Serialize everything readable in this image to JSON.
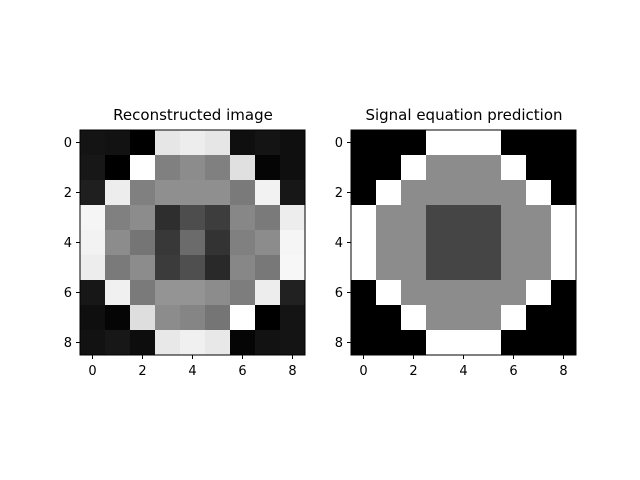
{
  "chart_data": [
    {
      "type": "heatmap",
      "title": "Reconstructed image",
      "colormap": "gray",
      "xticks": [
        0,
        2,
        4,
        6,
        8
      ],
      "yticks": [
        0,
        2,
        4,
        6,
        8
      ],
      "xlim": [
        -0.5,
        8.5
      ],
      "ylim": [
        8.5,
        -0.5
      ],
      "values": [
        [
          0.08,
          0.07,
          0.0,
          0.9,
          0.93,
          0.9,
          0.06,
          0.08,
          0.06
        ],
        [
          0.09,
          0.0,
          1.0,
          0.5,
          0.55,
          0.5,
          0.88,
          0.02,
          0.06
        ],
        [
          0.12,
          0.93,
          0.5,
          0.56,
          0.56,
          0.56,
          0.48,
          0.95,
          0.09
        ],
        [
          0.96,
          0.5,
          0.55,
          0.18,
          0.3,
          0.24,
          0.53,
          0.48,
          0.93
        ],
        [
          0.95,
          0.55,
          0.46,
          0.22,
          0.42,
          0.2,
          0.5,
          0.55,
          0.96
        ],
        [
          0.93,
          0.48,
          0.55,
          0.23,
          0.31,
          0.16,
          0.53,
          0.47,
          0.97
        ],
        [
          0.09,
          0.94,
          0.48,
          0.58,
          0.58,
          0.55,
          0.49,
          0.93,
          0.13
        ],
        [
          0.06,
          0.02,
          0.87,
          0.55,
          0.52,
          0.46,
          1.0,
          0.0,
          0.08
        ],
        [
          0.07,
          0.09,
          0.05,
          0.91,
          0.94,
          0.91,
          0.02,
          0.07,
          0.08
        ]
      ]
    },
    {
      "type": "heatmap",
      "title": "Signal equation prediction",
      "colormap": "gray",
      "xticks": [
        0,
        2,
        4,
        6,
        8
      ],
      "yticks": [
        0,
        2,
        4,
        6,
        8
      ],
      "xlim": [
        -0.5,
        8.5
      ],
      "ylim": [
        8.5,
        -0.5
      ],
      "values": [
        [
          0.0,
          0.0,
          0.0,
          1.0,
          1.0,
          1.0,
          0.0,
          0.0,
          0.0
        ],
        [
          0.0,
          0.0,
          1.0,
          0.55,
          0.55,
          0.55,
          1.0,
          0.0,
          0.0
        ],
        [
          0.0,
          1.0,
          0.55,
          0.55,
          0.55,
          0.55,
          0.55,
          1.0,
          0.0
        ],
        [
          1.0,
          0.55,
          0.55,
          0.27,
          0.27,
          0.27,
          0.55,
          0.55,
          1.0
        ],
        [
          1.0,
          0.55,
          0.55,
          0.27,
          0.27,
          0.27,
          0.55,
          0.55,
          1.0
        ],
        [
          1.0,
          0.55,
          0.55,
          0.27,
          0.27,
          0.27,
          0.55,
          0.55,
          1.0
        ],
        [
          0.0,
          1.0,
          0.55,
          0.55,
          0.55,
          0.55,
          0.55,
          1.0,
          0.0
        ],
        [
          0.0,
          0.0,
          1.0,
          0.55,
          0.55,
          0.55,
          1.0,
          0.0,
          0.0
        ],
        [
          0.0,
          0.0,
          0.0,
          1.0,
          1.0,
          1.0,
          0.0,
          0.0,
          0.0
        ]
      ]
    }
  ]
}
